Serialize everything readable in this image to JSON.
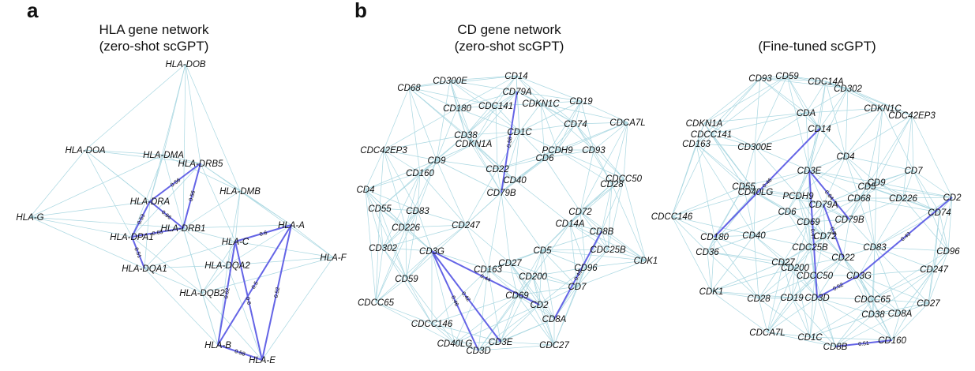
{
  "panels": {
    "a": {
      "letter": "a",
      "title_line1": "HLA gene network",
      "title_line2": "(zero-shot scGPT)"
    },
    "b": {
      "letter": "b"
    },
    "b1": {
      "title_line1": "CD gene network",
      "title_line2": "(zero-shot scGPT)"
    },
    "b2": {
      "title_line1": "(Fine-tuned scGPT)"
    }
  },
  "colors": {
    "light_edge": "#a9d7e1",
    "strong_edge": "#6464e6",
    "text": "#111111"
  },
  "networks": [
    {
      "id": "hla",
      "nodes": [
        "HLA-DOB",
        "HLA-DOA",
        "HLA-DMA",
        "HLA-DRB5",
        "HLA-DMB",
        "HLA-G",
        "HLA-DRA",
        "HLA-DPA1",
        "HLA-DRB1",
        "HLA-C",
        "HLA-A",
        "HLA-F",
        "HLA-DQA1",
        "HLA-DQA2",
        "HLA-DQB2",
        "HLA-B",
        "HLA-E"
      ],
      "strong_edges": [
        {
          "from": "HLA-DRB5",
          "to": "HLA-DRA",
          "weight": "0.56"
        },
        {
          "from": "HLA-DRB5",
          "to": "HLA-DRB1",
          "weight": "0.56"
        },
        {
          "from": "HLA-DRA",
          "to": "HLA-DPA1",
          "weight": "0.53"
        },
        {
          "from": "HLA-DRA",
          "to": "HLA-DRB1",
          "weight": "0.66"
        },
        {
          "from": "HLA-DPA1",
          "to": "HLA-DRB1",
          "weight": "0.65"
        },
        {
          "from": "HLA-DPA1",
          "to": "HLA-DQA1",
          "weight": "0.51"
        },
        {
          "from": "HLA-C",
          "to": "HLA-A",
          "weight": "0.6"
        },
        {
          "from": "HLA-C",
          "to": "HLA-B",
          "weight": "0.62"
        },
        {
          "from": "HLA-A",
          "to": "HLA-B",
          "weight": "0.5"
        },
        {
          "from": "HLA-A",
          "to": "HLA-E",
          "weight": "0.52"
        },
        {
          "from": "HLA-C",
          "to": "HLA-E",
          "weight": "0.6"
        },
        {
          "from": "HLA-B",
          "to": "HLA-E",
          "weight": "0.58"
        }
      ]
    },
    {
      "id": "cd_zero",
      "nodes": [
        "CD14",
        "CD68",
        "CD300E",
        "CD79A",
        "CD180",
        "CDC141",
        "CDKN1C",
        "CD19",
        "CD74",
        "CDCA7L",
        "CD38",
        "CD1C",
        "CDKN1A",
        "PCDH9",
        "CD93",
        "CD6",
        "CDC42EP3",
        "CD9",
        "CD160",
        "CD22",
        "CDCC50",
        "CD28",
        "CD40",
        "CD79B",
        "CD4",
        "CD55",
        "CD83",
        "CD72",
        "CD247",
        "CD14A",
        "CD226",
        "CD8B",
        "CD5",
        "CDC25B",
        "CD302",
        "CD3G",
        "CDK1",
        "CD27",
        "CD163",
        "CD96",
        "CD200",
        "CD59",
        "CD69",
        "CD7",
        "CDCC65",
        "CD2",
        "CDCC146",
        "CD8A",
        "CD40LG",
        "CD3E",
        "CD3D",
        "CDC27"
      ],
      "strong_edges": [
        {
          "from": "CD79A",
          "to": "CD79B",
          "weight": "0.58"
        },
        {
          "from": "CD3G",
          "to": "CD2",
          "weight": "0.44"
        },
        {
          "from": "CD3G",
          "to": "CD3E",
          "weight": "0.42"
        },
        {
          "from": "CD3G",
          "to": "CD3D",
          "weight": "0.46"
        },
        {
          "from": "CD8B",
          "to": "CD8A",
          "weight": "0.49"
        }
      ]
    },
    {
      "id": "cd_fine",
      "nodes": [
        "CD93",
        "CD59",
        "CDC14A",
        "CD302",
        "CDKN1C",
        "CDA",
        "CDC42EP3",
        "CDKN1A",
        "CD14",
        "CDCC141",
        "CD163",
        "CD300E",
        "CD4",
        "CD7",
        "CD3E",
        "CD9",
        "CD55",
        "CD40LG",
        "CD5",
        "CD2",
        "PCDH9",
        "CD68",
        "CD226",
        "CDCC146",
        "CD6",
        "CD79A",
        "CD74",
        "CD69",
        "CD79B",
        "CD180",
        "CD40",
        "CD72",
        "CD83",
        "CD36",
        "CDC25B",
        "CD22",
        "CD96",
        "CD27",
        "CD200",
        "CDCC50",
        "CD3G",
        "CD247",
        "CDK1",
        "CD28",
        "CD19",
        "CD3D",
        "CDCC65",
        "CD27",
        "CD38",
        "CD8A",
        "CDCA7L",
        "CD1C",
        "CD8B",
        "CD160"
      ],
      "strong_edges": [
        {
          "from": "CD14",
          "to": "CD180",
          "weight": "0.46"
        },
        {
          "from": "CD3E",
          "to": "CD79B",
          "weight": "0.64"
        },
        {
          "from": "CD3E",
          "to": "CD3D",
          "weight": "0.47"
        },
        {
          "from": "CD79A",
          "to": "CD22",
          "weight": "0.5"
        },
        {
          "from": "CD3G",
          "to": "CD2",
          "weight": "0.43"
        },
        {
          "from": "CD3G",
          "to": "CD3D",
          "weight": "0.52"
        },
        {
          "from": "CD8B",
          "to": "CD160",
          "weight": "0.51"
        }
      ]
    }
  ]
}
